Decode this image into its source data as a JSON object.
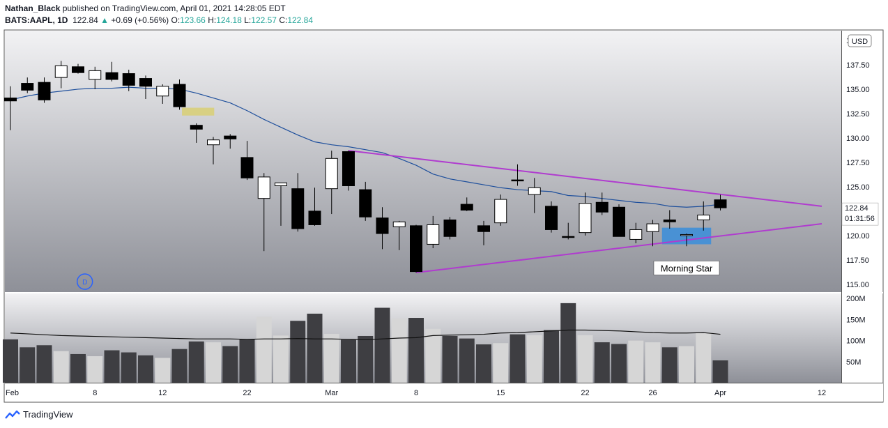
{
  "header": {
    "author": "Nathan_Black",
    "published_text": " published on TradingView.com, April 01, 2021 14:28:05 EDT",
    "symbol": "BATS:AAPL, 1D",
    "last": "122.84",
    "change_arrow": "▲",
    "change": "+0.69 (+0.56%)",
    "o_label": "O:",
    "o_value": "123.66",
    "h_label": "H:",
    "h_value": "124.18",
    "l_label": "L:",
    "l_value": "122.57",
    "c_label": "C:",
    "c_value": "122.84"
  },
  "price_axis": {
    "currency_button": "USD",
    "ticks": [
      "115.00",
      "117.50",
      "120.00",
      "122.50",
      "125.00",
      "127.50",
      "130.00",
      "132.50",
      "135.00",
      "137.50",
      "140.00"
    ],
    "last_price_label": "122.84",
    "countdown_label": "01:31:56"
  },
  "volume_axis": {
    "ticks": [
      "50M",
      "100M",
      "150M",
      "200M"
    ]
  },
  "time_axis": {
    "labels": [
      "Feb",
      "8",
      "12",
      "22",
      "Mar",
      "8",
      "15",
      "22",
      "26",
      "Apr",
      "12"
    ]
  },
  "annotations": {
    "morning_star": "Morning Star",
    "dividend_marker": "D"
  },
  "footer": {
    "brand": "TradingView"
  },
  "colors": {
    "up_candle": "#ffffff",
    "down_candle": "#000000",
    "ma_line": "#1e4f9c",
    "trendline": "#b03ccf",
    "morning_star_box": "#3f8fd8",
    "doji_highlight": "#d8cf7a",
    "volume_up": "#d6d6d6",
    "volume_down": "#3e3e42",
    "volume_ma": "#111111"
  },
  "chart_data": {
    "type": "candlestick",
    "symbol": "BATS:AAPL",
    "interval": "1D",
    "y_range": [
      114.2,
      141.0
    ],
    "volume_range_M": [
      0,
      212
    ],
    "candles": [
      {
        "o": 134.1,
        "h": 135.3,
        "l": 130.8,
        "c": 133.8,
        "v": 103
      },
      {
        "o": 135.6,
        "h": 136.2,
        "l": 134.6,
        "c": 134.9,
        "v": 84
      },
      {
        "o": 135.7,
        "h": 136.2,
        "l": 133.6,
        "c": 133.9,
        "v": 89
      },
      {
        "o": 136.2,
        "h": 137.9,
        "l": 135.1,
        "c": 137.4,
        "v": 75
      },
      {
        "o": 137.3,
        "h": 137.6,
        "l": 136.6,
        "c": 136.7,
        "v": 68
      },
      {
        "o": 136.0,
        "h": 137.3,
        "l": 135.0,
        "c": 136.9,
        "v": 63
      },
      {
        "o": 136.7,
        "h": 137.8,
        "l": 135.8,
        "c": 136.0,
        "v": 77
      },
      {
        "o": 136.6,
        "h": 137.0,
        "l": 134.8,
        "c": 135.4,
        "v": 72
      },
      {
        "o": 136.1,
        "h": 136.4,
        "l": 134.0,
        "c": 135.3,
        "v": 65
      },
      {
        "o": 134.3,
        "h": 135.5,
        "l": 133.5,
        "c": 135.3,
        "v": 59
      },
      {
        "o": 135.5,
        "h": 136.0,
        "l": 132.9,
        "c": 133.2,
        "v": 80
      },
      {
        "o": 131.3,
        "h": 131.5,
        "l": 129.5,
        "c": 130.9,
        "v": 98
      },
      {
        "o": 129.3,
        "h": 130.1,
        "l": 127.3,
        "c": 129.8,
        "v": 96
      },
      {
        "o": 130.2,
        "h": 130.4,
        "l": 128.9,
        "c": 129.9,
        "v": 87
      },
      {
        "o": 128.0,
        "h": 129.7,
        "l": 125.7,
        "c": 125.9,
        "v": 103
      },
      {
        "o": 123.8,
        "h": 126.4,
        "l": 118.4,
        "c": 126.0,
        "v": 157
      },
      {
        "o": 125.1,
        "h": 125.4,
        "l": 121.0,
        "c": 125.4,
        "v": 112
      },
      {
        "o": 124.8,
        "h": 126.4,
        "l": 120.4,
        "c": 120.7,
        "v": 147
      },
      {
        "o": 122.5,
        "h": 124.9,
        "l": 121.0,
        "c": 121.1,
        "v": 164
      },
      {
        "o": 124.8,
        "h": 128.7,
        "l": 122.2,
        "c": 127.9,
        "v": 116
      },
      {
        "o": 128.6,
        "h": 128.7,
        "l": 124.6,
        "c": 125.1,
        "v": 102
      },
      {
        "o": 124.7,
        "h": 125.5,
        "l": 121.5,
        "c": 121.9,
        "v": 111
      },
      {
        "o": 121.8,
        "h": 122.9,
        "l": 118.6,
        "c": 120.2,
        "v": 178
      },
      {
        "o": 120.9,
        "h": 121.5,
        "l": 118.5,
        "c": 121.4,
        "v": 153
      },
      {
        "o": 121.0,
        "h": 121.1,
        "l": 116.2,
        "c": 116.3,
        "v": 154
      },
      {
        "o": 119.1,
        "h": 122.0,
        "l": 118.7,
        "c": 121.1,
        "v": 128
      },
      {
        "o": 121.6,
        "h": 121.9,
        "l": 119.6,
        "c": 119.9,
        "v": 111
      },
      {
        "o": 123.2,
        "h": 123.9,
        "l": 122.5,
        "c": 122.6,
        "v": 105
      },
      {
        "o": 121.0,
        "h": 121.5,
        "l": 119.0,
        "c": 120.4,
        "v": 91
      },
      {
        "o": 121.3,
        "h": 124.2,
        "l": 121.0,
        "c": 123.7,
        "v": 94
      },
      {
        "o": 125.7,
        "h": 127.3,
        "l": 125.1,
        "c": 125.6,
        "v": 115
      },
      {
        "o": 124.2,
        "h": 125.9,
        "l": 122.3,
        "c": 124.9,
        "v": 113
      },
      {
        "o": 123.0,
        "h": 123.5,
        "l": 120.3,
        "c": 120.6,
        "v": 125
      },
      {
        "o": 119.9,
        "h": 121.3,
        "l": 119.6,
        "c": 119.8,
        "v": 189
      },
      {
        "o": 120.3,
        "h": 124.4,
        "l": 120.0,
        "c": 123.3,
        "v": 113
      },
      {
        "o": 123.4,
        "h": 124.4,
        "l": 122.1,
        "c": 122.4,
        "v": 96
      },
      {
        "o": 122.9,
        "h": 123.2,
        "l": 120.0,
        "c": 119.9,
        "v": 92
      },
      {
        "o": 119.6,
        "h": 121.3,
        "l": 119.2,
        "c": 120.6,
        "v": 100
      },
      {
        "o": 120.4,
        "h": 121.6,
        "l": 118.9,
        "c": 121.2,
        "v": 96
      },
      {
        "o": 121.6,
        "h": 122.6,
        "l": 120.7,
        "c": 121.4,
        "v": 84
      },
      {
        "o": 120.0,
        "h": 120.2,
        "l": 118.9,
        "c": 120.1,
        "v": 87
      },
      {
        "o": 121.6,
        "h": 123.5,
        "l": 120.5,
        "c": 122.1,
        "v": 119
      },
      {
        "o": 123.66,
        "h": 124.18,
        "l": 122.57,
        "c": 122.84,
        "v": 53
      }
    ],
    "ma": [
      133.9,
      134.3,
      134.6,
      134.8,
      135.0,
      135.1,
      135.1,
      135.2,
      135.1,
      135.1,
      135.0,
      134.6,
      134.1,
      133.6,
      132.8,
      131.9,
      131.1,
      130.3,
      129.6,
      129.3,
      129.1,
      128.8,
      128.5,
      127.9,
      127.2,
      126.3,
      125.8,
      125.5,
      125.2,
      124.9,
      124.7,
      124.6,
      124.5,
      124.1,
      124.0,
      123.8,
      123.6,
      123.4,
      123.3,
      123.0,
      122.9,
      123.0,
      123.2
    ],
    "volume_ma": [
      118,
      116,
      114,
      112,
      111,
      110,
      109,
      108,
      107,
      106,
      105,
      104,
      104,
      104,
      103,
      104,
      104,
      105,
      104,
      104,
      103,
      102,
      104,
      106,
      107,
      112,
      113,
      114,
      115,
      118,
      119,
      121,
      123,
      125,
      125,
      124,
      123,
      121,
      119,
      118,
      118,
      119,
      115
    ],
    "trendlines": [
      {
        "name": "upper",
        "x0": 20,
        "y0": 128.7,
        "x1": 48,
        "y1": 123.0
      },
      {
        "name": "lower",
        "x0": 24,
        "y0": 116.2,
        "x1": 48,
        "y1": 121.2
      }
    ],
    "highlights": [
      {
        "name": "morning-star",
        "x0": 39,
        "x1": 41,
        "y0": 119.1,
        "y1": 120.8
      },
      {
        "name": "doji",
        "x0": 10.6,
        "x1": 11.6,
        "y0": 132.3,
        "y1": 133.1
      }
    ],
    "time_labels": [
      {
        "label": "Feb",
        "x": 0
      },
      {
        "label": "8",
        "x": 5
      },
      {
        "label": "12",
        "x": 9
      },
      {
        "label": "22",
        "x": 14
      },
      {
        "label": "Mar",
        "x": 19
      },
      {
        "label": "8",
        "x": 24
      },
      {
        "label": "15",
        "x": 29
      },
      {
        "label": "22",
        "x": 34
      },
      {
        "label": "26",
        "x": 38
      },
      {
        "label": "Apr",
        "x": 42
      },
      {
        "label": "12",
        "x": 48
      }
    ],
    "dividend_x": 4.4
  }
}
